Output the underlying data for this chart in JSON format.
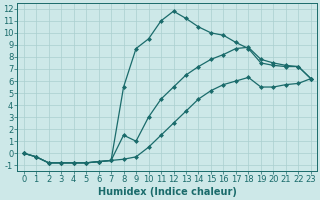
{
  "xlabel": "Humidex (Indice chaleur)",
  "xlim": [
    -0.5,
    23.5
  ],
  "ylim": [
    -1.5,
    12.5
  ],
  "xticks": [
    0,
    1,
    2,
    3,
    4,
    5,
    6,
    7,
    8,
    9,
    10,
    11,
    12,
    13,
    14,
    15,
    16,
    17,
    18,
    19,
    20,
    21,
    22,
    23
  ],
  "yticks": [
    -1,
    0,
    1,
    2,
    3,
    4,
    5,
    6,
    7,
    8,
    9,
    10,
    11,
    12
  ],
  "bg_color": "#cde8e8",
  "line_color": "#1a6b6b",
  "grid_color": "#aacfcf",
  "line1_x": [
    0,
    1,
    2,
    3,
    4,
    5,
    6,
    7,
    8,
    9,
    10,
    11,
    12,
    13,
    14,
    15,
    16,
    17,
    18,
    19,
    20,
    21,
    22,
    23
  ],
  "line1_y": [
    0,
    -0.3,
    -0.8,
    -0.8,
    -0.8,
    -0.8,
    -0.7,
    -0.6,
    5.5,
    8.7,
    9.5,
    11.0,
    11.8,
    11.2,
    10.5,
    10.0,
    9.8,
    9.2,
    8.7,
    7.5,
    7.3,
    7.2,
    7.2,
    6.2
  ],
  "line2_x": [
    0,
    1,
    2,
    3,
    4,
    5,
    6,
    7,
    8,
    9,
    10,
    11,
    12,
    13,
    14,
    15,
    16,
    17,
    18,
    19,
    20,
    21,
    22,
    23
  ],
  "line2_y": [
    0,
    -0.3,
    -0.8,
    -0.8,
    -0.8,
    -0.8,
    -0.7,
    -0.6,
    1.5,
    1.0,
    3.0,
    4.5,
    5.5,
    6.5,
    7.2,
    7.8,
    8.2,
    8.7,
    8.8,
    7.8,
    7.5,
    7.3,
    7.2,
    6.2
  ],
  "line3_x": [
    0,
    1,
    2,
    3,
    4,
    5,
    6,
    7,
    8,
    9,
    10,
    11,
    12,
    13,
    14,
    15,
    16,
    17,
    18,
    19,
    20,
    21,
    22,
    23
  ],
  "line3_y": [
    0,
    -0.3,
    -0.8,
    -0.8,
    -0.8,
    -0.8,
    -0.7,
    -0.6,
    -0.5,
    -0.3,
    0.5,
    1.5,
    2.5,
    3.5,
    4.5,
    5.2,
    5.7,
    6.0,
    6.3,
    5.5,
    5.5,
    5.7,
    5.8,
    6.2
  ],
  "font_size": 6,
  "xlabel_font_size": 7,
  "marker": "D",
  "marker_size": 2.0,
  "line_width": 0.9
}
